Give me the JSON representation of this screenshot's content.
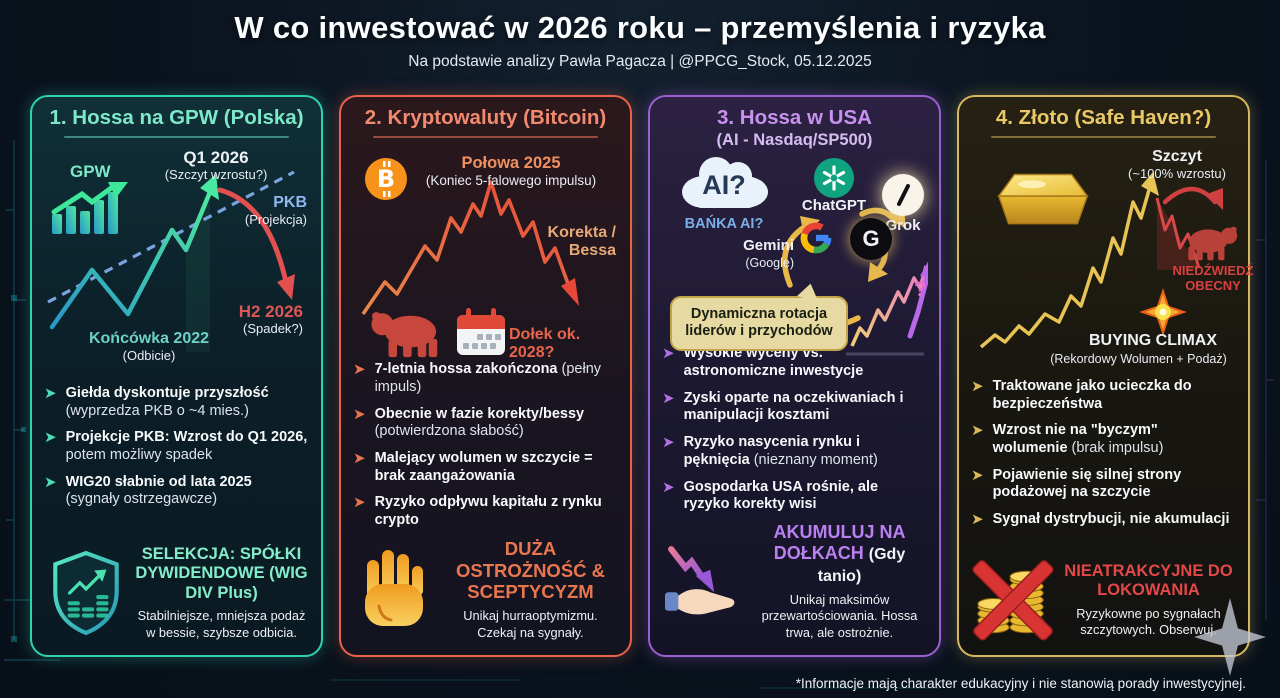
{
  "header": {
    "title": "W co inwestować w 2026 roku – przemyślenia i ryzyka",
    "subtitle": "Na podstawie analizy Pawła Pagacza | @PPCG_Stock, 05.12.2025"
  },
  "footer": {
    "disclaimer": "*Informacje mają charakter edukacyjny i nie stanowią porady inwestycyjnej."
  },
  "panels": [
    {
      "id": "gpw",
      "accent": "#2fd3ab",
      "title": "1. Hossa na GPW (Polska)",
      "chart": {
        "gpw_label": "GPW",
        "peak_label": "Q1 2026",
        "peak_sub": "(Szczyt wzrostu?)",
        "pkb_label": "PKB",
        "pkb_sub": "(Projekcja)",
        "start_label": "Końcówka 2022",
        "start_sub": "(Odbicie)",
        "drop_label": "H2 2026",
        "drop_sub": "(Spadek?)"
      },
      "bullets": [
        {
          "strong": "Giełda dyskontuje przyszłość",
          "rest": "(wyprzedza PKB o ~4 mies.)"
        },
        {
          "strong": "Projekcje PKB: Wzrost do Q1 2026,",
          "rest": "potem możliwy spadek"
        },
        {
          "strong": "WIG20 słabnie od lata 2025",
          "rest": "(sygnały ostrzegawcze)"
        }
      ],
      "summary": {
        "heading": "SELEKCJA: SPÓŁKI DYWIDENDOWE (WIG DIV Plus)",
        "note": "Stabilniejsze, mniejsza podaż w bessie, szybsze odbicia."
      }
    },
    {
      "id": "crypto",
      "accent": "#e8634a",
      "title": "2. Kryptowaluty (Bitcoin)",
      "chart": {
        "top_label": "Połowa 2025",
        "top_sub": "(Koniec 5-falowego impulsu)",
        "phase_label": "Korekta / Bessa",
        "bottom_label": "Dołek ok. 2028?"
      },
      "bullets": [
        {
          "strong": "7-letnia hossa zakończona",
          "rest": "(pełny impuls)"
        },
        {
          "strong": "Obecnie w fazie korekty/bessy",
          "rest": "(potwierdzona słabość)"
        },
        {
          "strong": "Malejący wolumen w szczycie = brak zaangażowania",
          "rest": ""
        },
        {
          "strong": "Ryzyko odpływu kapitału z rynku crypto",
          "rest": ""
        }
      ],
      "summary": {
        "heading": "DUŻA OSTROŻNOŚĆ & SCEPTYCYZM",
        "note": "Unikaj hurraoptymizmu. Czekaj na sygnały."
      }
    },
    {
      "id": "usa",
      "accent": "#9a5fd0",
      "title": "3. Hossa w USA",
      "subtitle": "(AI - Nasdaq/SP500)",
      "chart": {
        "cloud_text": "AI?",
        "cloud_caption": "BAŃKA AI?",
        "logo_chatgpt": "ChatGPT",
        "logo_grok": "Grok",
        "logo_gemini": "Gemini",
        "logo_gemini_sub": "(Google)",
        "bubble": "Dynamiczna rotacja liderów i przychodów",
        "question_mark": "?"
      },
      "bullets": [
        {
          "strong": "Wysokie wyceny vs. astronomiczne inwestycje",
          "rest": ""
        },
        {
          "strong": "Zyski oparte na oczekiwaniach i manipulacji kosztami",
          "rest": ""
        },
        {
          "strong": "Ryzyko nasycenia rynku i pęknięcia",
          "rest": "(nieznany moment)"
        },
        {
          "strong": "Gospodarka USA rośnie, ale ryzyko korekty wisi",
          "rest": ""
        }
      ],
      "summary": {
        "heading": "AKUMULUJ NA DOŁKACH",
        "heading_suffix": "(Gdy tanio)",
        "note": "Unikaj maksimów przewartościowania. Hossa trwa, ale ostrożnie."
      }
    },
    {
      "id": "gold",
      "accent": "#d4b75e",
      "title": "4. Złoto (Safe Haven?)",
      "chart": {
        "peak_label": "Szczyt",
        "peak_sub": "(~100% wzrostu)",
        "bear_label": "NIEDŹWIEDŹ OBECNY",
        "climax_label": "BUYING CLIMAX",
        "climax_sub": "(Rekordowy Wolumen + Podaż)"
      },
      "bullets": [
        {
          "strong": "Traktowane jako ucieczka do bezpieczeństwa",
          "rest": ""
        },
        {
          "strong": "Wzrost nie na \"byczym\" wolumenie",
          "rest": "(brak impulsu)"
        },
        {
          "strong": "Pojawienie się silnej strony podażowej na szczycie",
          "rest": ""
        },
        {
          "strong": "Sygnał dystrybucji, nie akumulacji",
          "rest": ""
        }
      ],
      "summary": {
        "heading": "NIEATRAKCYJNE DO LOKOWANIA",
        "note": "Ryzykowne po sygnałach szczytowych. Obserwuj."
      }
    }
  ]
}
